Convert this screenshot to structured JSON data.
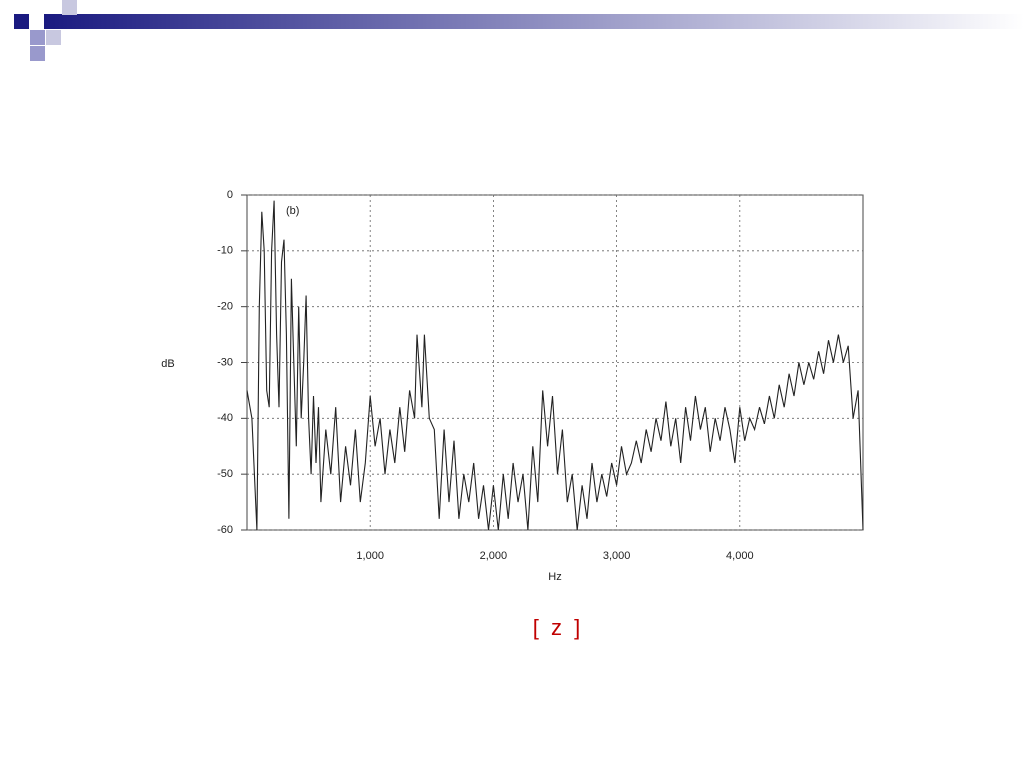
{
  "chart_data": {
    "type": "line",
    "annotation": "(b)",
    "x_label": "Hz",
    "y_label": "dB",
    "caption": "[ z ]",
    "xlim": [
      0,
      5000
    ],
    "ylim": [
      -60,
      0
    ],
    "xticks": [
      {
        "value": 1000,
        "label": "1,000"
      },
      {
        "value": 2000,
        "label": "2,000"
      },
      {
        "value": 3000,
        "label": "3,000"
      },
      {
        "value": 4000,
        "label": "4,000"
      }
    ],
    "yticks": [
      0,
      -10,
      -20,
      -30,
      -40,
      -50,
      -60
    ],
    "grid": true,
    "series": [
      {
        "color": "#222222",
        "x": [
          0,
          40,
          80,
          100,
          120,
          140,
          160,
          180,
          200,
          220,
          240,
          260,
          280,
          300,
          320,
          340,
          360,
          380,
          400,
          420,
          440,
          460,
          480,
          500,
          520,
          540,
          560,
          580,
          600,
          640,
          680,
          720,
          760,
          800,
          840,
          880,
          920,
          960,
          1000,
          1040,
          1080,
          1120,
          1160,
          1200,
          1240,
          1280,
          1320,
          1360,
          1380,
          1420,
          1440,
          1480,
          1520,
          1560,
          1600,
          1640,
          1680,
          1720,
          1760,
          1800,
          1840,
          1880,
          1920,
          1960,
          2000,
          2040,
          2080,
          2120,
          2160,
          2200,
          2240,
          2280,
          2320,
          2360,
          2400,
          2440,
          2480,
          2520,
          2560,
          2600,
          2640,
          2680,
          2720,
          2760,
          2800,
          2840,
          2880,
          2920,
          2960,
          3000,
          3040,
          3080,
          3120,
          3160,
          3200,
          3240,
          3280,
          3320,
          3360,
          3400,
          3440,
          3480,
          3520,
          3560,
          3600,
          3640,
          3680,
          3720,
          3760,
          3800,
          3840,
          3880,
          3920,
          3960,
          4000,
          4040,
          4080,
          4120,
          4160,
          4200,
          4240,
          4280,
          4320,
          4360,
          4400,
          4440,
          4480,
          4520,
          4560,
          4600,
          4640,
          4680,
          4720,
          4760,
          4800,
          4840,
          4880,
          4920,
          4960,
          5000
        ],
        "values": [
          -35,
          -40,
          -60,
          -20,
          -3,
          -10,
          -35,
          -38,
          -10,
          -1,
          -25,
          -38,
          -12,
          -8,
          -25,
          -58,
          -15,
          -30,
          -45,
          -20,
          -40,
          -30,
          -18,
          -40,
          -50,
          -36,
          -48,
          -38,
          -55,
          -42,
          -50,
          -38,
          -55,
          -45,
          -52,
          -42,
          -55,
          -48,
          -36,
          -45,
          -40,
          -50,
          -42,
          -48,
          -38,
          -46,
          -35,
          -40,
          -25,
          -38,
          -25,
          -40,
          -42,
          -58,
          -42,
          -55,
          -44,
          -58,
          -50,
          -55,
          -48,
          -58,
          -52,
          -60,
          -52,
          -60,
          -50,
          -58,
          -48,
          -55,
          -50,
          -60,
          -45,
          -55,
          -35,
          -45,
          -36,
          -50,
          -42,
          -55,
          -50,
          -60,
          -52,
          -58,
          -48,
          -55,
          -50,
          -54,
          -48,
          -52,
          -45,
          -50,
          -48,
          -44,
          -48,
          -42,
          -46,
          -40,
          -44,
          -37,
          -45,
          -40,
          -48,
          -38,
          -44,
          -36,
          -42,
          -38,
          -46,
          -40,
          -44,
          -38,
          -42,
          -48,
          -38,
          -44,
          -40,
          -42,
          -38,
          -41,
          -36,
          -40,
          -34,
          -38,
          -32,
          -36,
          -30,
          -34,
          -30,
          -33,
          -28,
          -32,
          -26,
          -30,
          -25,
          -30,
          -27,
          -40,
          -35,
          -60
        ]
      }
    ]
  }
}
